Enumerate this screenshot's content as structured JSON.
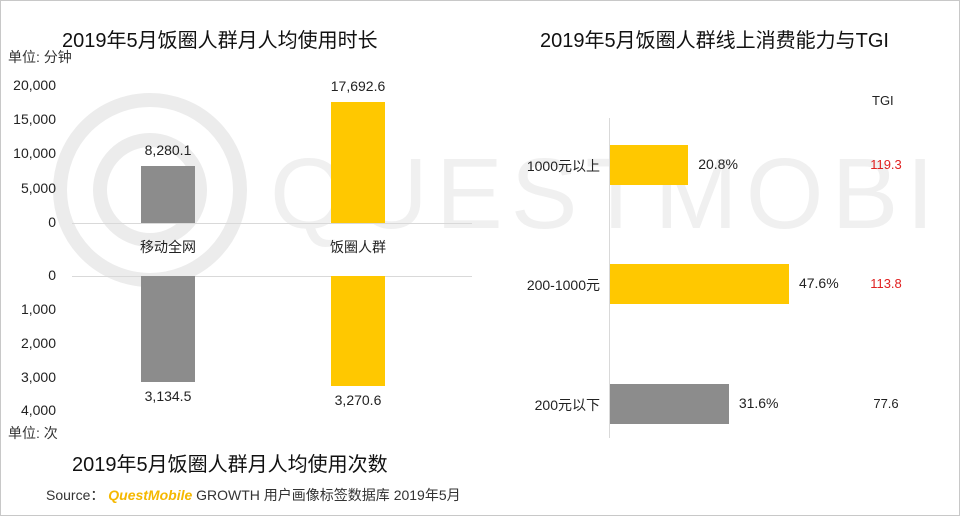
{
  "colors": {
    "gray": "#8c8c8c",
    "yellow": "#ffc800",
    "tgi_high": "#e02020",
    "tgi_normal": "#222222"
  },
  "source": {
    "label": "Source：",
    "brand": "QuestMobile",
    "text": "GROWTH 用户画像标签数据库 2019年5月"
  },
  "watermark": "QUESTMOBILE",
  "chart_data": [
    {
      "type": "bar",
      "title": "2019年5月饭圈人群月人均使用时长",
      "unit": "单位: 分钟",
      "categories": [
        "移动全网",
        "饭圈人群"
      ],
      "values": [
        8280.1,
        17692.6
      ],
      "value_labels": [
        "8,280.1",
        "17,692.6"
      ],
      "ylim": [
        0,
        20000
      ],
      "yticks": [
        "20,000",
        "15,000",
        "10,000",
        "5,000",
        "0"
      ],
      "colors": [
        "#8c8c8c",
        "#ffc800"
      ]
    },
    {
      "type": "bar",
      "title": "2019年5月饭圈人群月人均使用次数",
      "unit": "单位: 次",
      "categories": [
        "移动全网",
        "饭圈人群"
      ],
      "values": [
        3134.5,
        3270.6
      ],
      "value_labels": [
        "3,134.5",
        "3,270.6"
      ],
      "ylim": [
        0,
        4000
      ],
      "yticks": [
        "0",
        "1,000",
        "2,000",
        "3,000",
        "4,000"
      ],
      "inverted": true,
      "colors": [
        "#8c8c8c",
        "#ffc800"
      ]
    },
    {
      "type": "bar",
      "orientation": "horizontal",
      "title": "2019年5月饭圈人群线上消费能力与TGI",
      "categories": [
        "1000元以上",
        "200-1000元",
        "200元以下"
      ],
      "values": [
        20.8,
        47.6,
        31.6
      ],
      "value_labels": [
        "20.8%",
        "47.6%",
        "31.6%"
      ],
      "tgi_header": "TGI",
      "tgi": [
        "119.3",
        "113.8",
        "77.6"
      ],
      "tgi_highlight": [
        true,
        true,
        false
      ],
      "colors": [
        "#ffc800",
        "#ffc800",
        "#8c8c8c"
      ],
      "xlim": [
        0,
        50
      ]
    }
  ]
}
